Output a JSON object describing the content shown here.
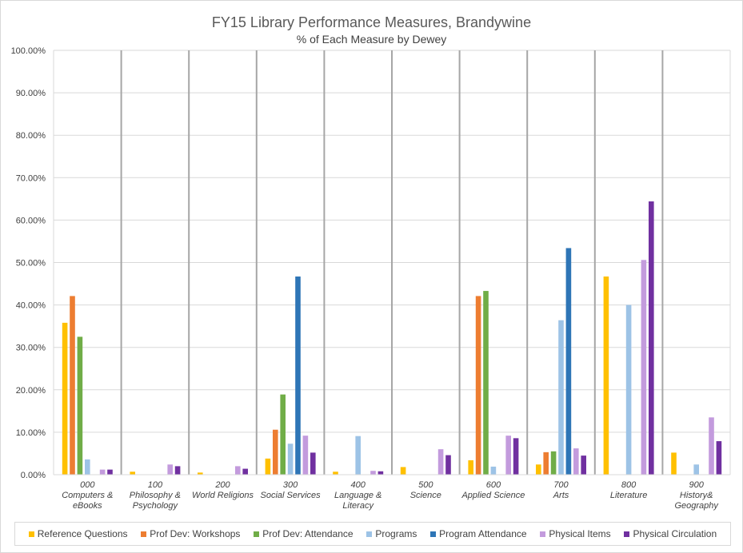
{
  "chart_data": {
    "type": "bar",
    "title": "FY15 Library Performance Measures, Brandywine",
    "subtitle": "% of Each Measure by Dewey",
    "xlabel": "",
    "ylabel": "",
    "ylim": [
      0,
      100
    ],
    "yticks": [
      "0.00%",
      "10.00%",
      "20.00%",
      "30.00%",
      "40.00%",
      "50.00%",
      "60.00%",
      "70.00%",
      "80.00%",
      "90.00%",
      "100.00%"
    ],
    "grid": true,
    "legend_position": "bottom",
    "categories": [
      [
        "000",
        "Computers &",
        "eBooks"
      ],
      [
        "100",
        "Philosophy &",
        "Psychology"
      ],
      [
        "200",
        "World Religions"
      ],
      [
        "300",
        "Social Services"
      ],
      [
        "400",
        "Language &",
        "Literacy"
      ],
      [
        "500",
        "Science"
      ],
      [
        "600",
        "Applied Science"
      ],
      [
        "700",
        "Arts"
      ],
      [
        "800",
        "Literature"
      ],
      [
        "900",
        "History&",
        "Geography"
      ]
    ],
    "series": [
      {
        "name": "Reference Questions",
        "color": "#FFC000",
        "values": [
          35.8,
          0.7,
          0.5,
          3.8,
          0.7,
          1.8,
          3.4,
          2.4,
          46.7,
          5.2
        ]
      },
      {
        "name": "Prof Dev: Workshops",
        "color": "#ED7D31",
        "values": [
          42.1,
          0,
          0,
          10.6,
          0,
          0,
          42.1,
          5.3,
          0,
          0
        ]
      },
      {
        "name": "Prof Dev: Attendance",
        "color": "#70AD47",
        "values": [
          32.5,
          0,
          0,
          18.9,
          0,
          0,
          43.3,
          5.5,
          0,
          0
        ]
      },
      {
        "name": "Programs",
        "color": "#9DC3E6",
        "values": [
          3.6,
          0,
          0,
          7.3,
          9.1,
          0,
          1.9,
          36.4,
          40.0,
          2.4
        ]
      },
      {
        "name": "Program Attendance",
        "color": "#2E75B6",
        "values": [
          0,
          0,
          0,
          46.7,
          0,
          0,
          0,
          53.4,
          0,
          0
        ]
      },
      {
        "name": "Physical Items",
        "color": "#C39BDD",
        "values": [
          1.2,
          2.4,
          2.0,
          9.2,
          0.9,
          6.0,
          9.2,
          6.2,
          50.6,
          13.5
        ]
      },
      {
        "name": "Physical Circulation",
        "color": "#7030A0",
        "values": [
          1.2,
          2.0,
          1.4,
          5.2,
          0.8,
          4.6,
          8.6,
          4.5,
          64.4,
          7.9
        ]
      }
    ]
  }
}
